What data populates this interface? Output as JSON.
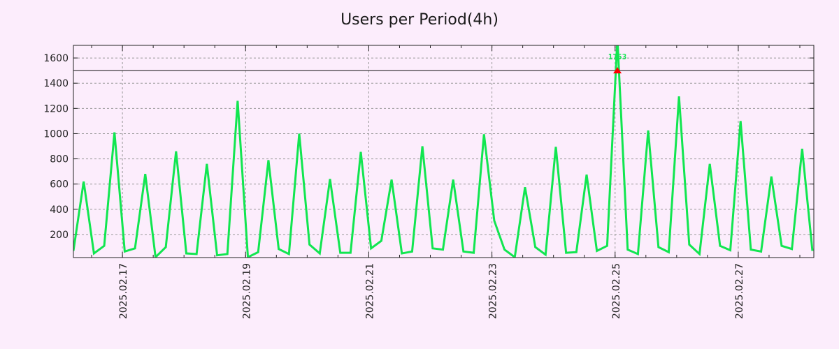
{
  "chart_data": {
    "type": "line",
    "title": "Users per Period(4h)",
    "xlabel": "",
    "ylabel": "",
    "x_start": "2025-02-16 04:54",
    "interval_hours": 4,
    "xlim_hours_from_2025_02_16": [
      4.9,
      293.45
    ],
    "ylim": [
      17,
      1700
    ],
    "y_ticks": [
      200,
      400,
      600,
      800,
      1000,
      1200,
      1400,
      1600
    ],
    "x_ticks": [
      {
        "label": "2025.02.17",
        "hours": 24
      },
      {
        "label": "2025.02.19",
        "hours": 72
      },
      {
        "label": "2025.02.21",
        "hours": 120
      },
      {
        "label": "2025.02.23",
        "hours": 168
      },
      {
        "label": "2025.02.25",
        "hours": 216
      },
      {
        "label": "2025.02.27",
        "hours": 264
      }
    ],
    "grid": true,
    "series": [
      {
        "name": "users",
        "color": "#11e650",
        "values": [
          70,
          620,
          50,
          110,
          1010,
          65,
          90,
          680,
          20,
          100,
          860,
          50,
          45,
          760,
          35,
          45,
          1260,
          20,
          60,
          790,
          85,
          45,
          1000,
          120,
          50,
          640,
          55,
          55,
          855,
          90,
          150,
          635,
          50,
          65,
          900,
          90,
          80,
          635,
          65,
          55,
          995,
          310,
          80,
          20,
          575,
          100,
          40,
          895,
          55,
          60,
          675,
          70,
          110,
          1753,
          80,
          45,
          1025,
          100,
          60,
          1295,
          120,
          45,
          760,
          110,
          75,
          1100,
          80,
          65,
          660,
          110,
          85,
          880,
          70
        ]
      }
    ],
    "hline": 1500,
    "max_annotation": {
      "label": "1753",
      "index": 53,
      "marker_color": "#ff0000",
      "label_color": "#11e650"
    }
  }
}
